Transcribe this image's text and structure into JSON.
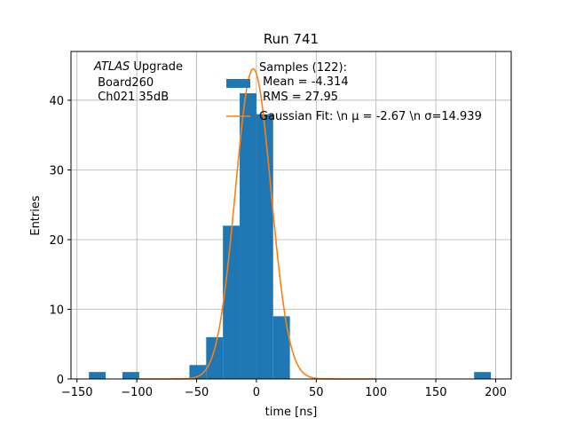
{
  "chart_data": {
    "type": "bar",
    "title": "Run 741",
    "xlabel": "time [ns]",
    "ylabel": "Entries",
    "xlim": [
      -155,
      213
    ],
    "ylim": [
      0,
      47
    ],
    "xticks": [
      -150,
      -100,
      -50,
      0,
      50,
      100,
      150,
      200
    ],
    "yticks": [
      0,
      10,
      20,
      30,
      40
    ],
    "grid": true,
    "bar_color": "#1f77b4",
    "fit_color": "#ff7f0e",
    "histogram": {
      "bin_edges": [
        -140,
        -126,
        -112,
        -98,
        -84,
        -70,
        -56,
        -42,
        -28,
        -14,
        0,
        14,
        28,
        42,
        56,
        70,
        84,
        98,
        112,
        126,
        140,
        154,
        168,
        182,
        196
      ],
      "counts": [
        1,
        0,
        1,
        0,
        0,
        0,
        2,
        6,
        22,
        41,
        38,
        9,
        0,
        0,
        0,
        0,
        0,
        0,
        0,
        0,
        0,
        0,
        0,
        1
      ]
    },
    "gaussian_fit": {
      "amplitude": 44.5,
      "mu": -2.67,
      "sigma": 14.939
    },
    "annotation": [
      "ATLAS Upgrade",
      " Board260",
      " Ch021 35dB"
    ],
    "legend": {
      "placement": "top-center",
      "samples": [
        "Samples (122):",
        " Mean = -4.314",
        " RMS = 27.95"
      ],
      "fit": "Gaussian Fit: \\n μ = -2.67 \\n σ=14.939"
    }
  }
}
